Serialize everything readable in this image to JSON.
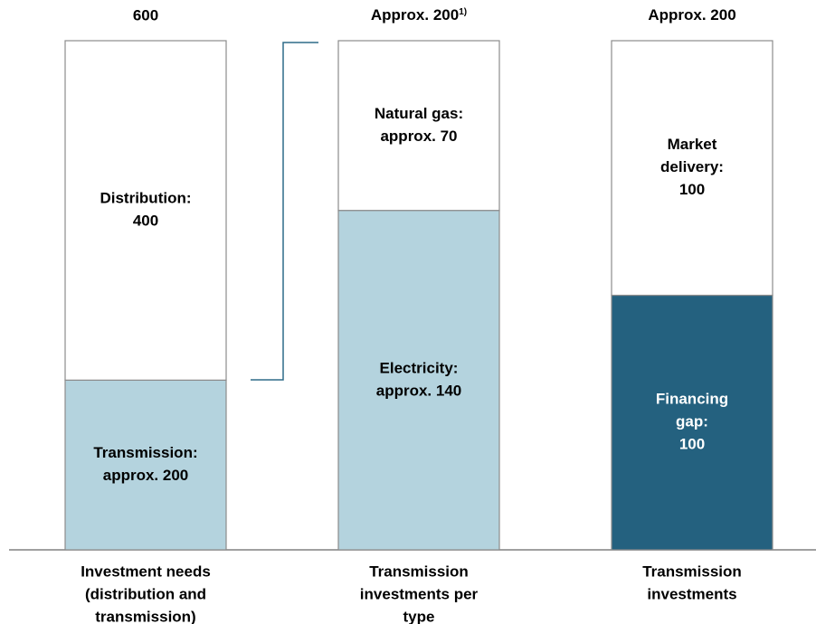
{
  "chart_data": {
    "type": "bar",
    "stacked": true,
    "normalized": true,
    "categories": [
      [
        "Investment needs",
        "(distribution and",
        "transmission)"
      ],
      [
        "Transmission",
        "investments per",
        "type"
      ],
      [
        "Transmission",
        "investments"
      ]
    ],
    "totals": [
      600,
      {
        "value": 200,
        "label": "Approx. 200",
        "note": "1)"
      },
      {
        "value": 200,
        "label": "Approx. 200"
      }
    ],
    "bars": [
      {
        "segments": [
          {
            "value": 200,
            "value_label": [
              "Transmission:",
              "approx. 200"
            ],
            "color": "#b4d3de",
            "text_color": "#000000"
          },
          {
            "value": 400,
            "value_label": [
              "Distribution:",
              "400"
            ],
            "color": "#ffffff",
            "text_color": "#000000"
          }
        ]
      },
      {
        "segments": [
          {
            "value": 140,
            "value_label": [
              "Electricity:",
              "approx. 140"
            ],
            "color": "#b4d3de",
            "text_color": "#000000"
          },
          {
            "value": 70,
            "value_label": [
              "Natural gas:",
              "approx. 70"
            ],
            "color": "#ffffff",
            "text_color": "#000000"
          }
        ]
      },
      {
        "segments": [
          {
            "value": 100,
            "value_label": [
              "Financing",
              "gap:",
              "100"
            ],
            "color": "#24617f",
            "text_color": "#ffffff"
          },
          {
            "value": 100,
            "value_label": [
              "Market",
              "delivery:",
              "100"
            ],
            "color": "#ffffff",
            "text_color": "#000000"
          }
        ]
      }
    ]
  }
}
